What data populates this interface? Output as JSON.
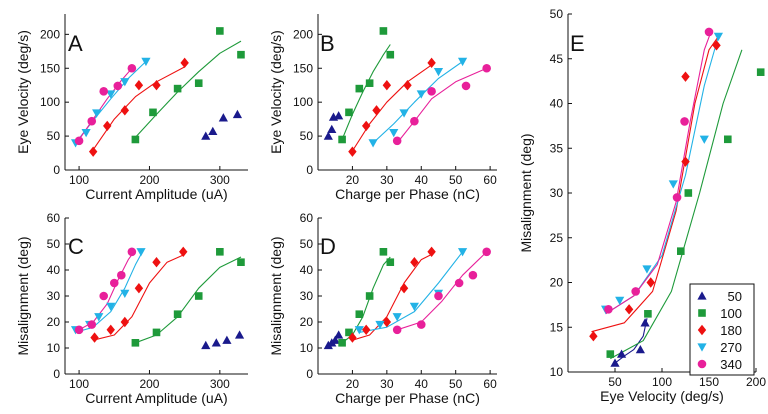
{
  "series_styles": [
    {
      "name": "50",
      "color": "#1a1a8c",
      "marker": "triangle-up"
    },
    {
      "name": "100",
      "color": "#1e9a3a",
      "marker": "square"
    },
    {
      "name": "180",
      "color": "#ee1111",
      "marker": "diamond"
    },
    {
      "name": "270",
      "color": "#22b2e6",
      "marker": "triangle-down"
    },
    {
      "name": "340",
      "color": "#e8209a",
      "marker": "circle"
    }
  ],
  "legend": {
    "position": "bottom-right",
    "panel": "E"
  },
  "chart_data": [
    {
      "panel": "A",
      "type": "scatter",
      "xlabel": "Current Amplitude (uA)",
      "ylabel": "Eye Velocity (deg/s)",
      "xlim": [
        80,
        340
      ],
      "ylim": [
        0,
        230
      ],
      "xticks": [
        100,
        200,
        300
      ],
      "yticks": [
        0,
        50,
        100,
        150,
        200
      ],
      "series": [
        {
          "name": "50",
          "x": [
            280,
            290,
            305,
            325
          ],
          "y": [
            50,
            57,
            77,
            82
          ],
          "fit": {
            "x": [],
            "y": []
          }
        },
        {
          "name": "100",
          "x": [
            180,
            205,
            240,
            270,
            300,
            330
          ],
          "y": [
            45,
            85,
            120,
            128,
            205,
            170
          ],
          "fit": {
            "x": [
              180,
              210,
              240,
              270,
              300,
              330
            ],
            "y": [
              48,
              82,
              115,
              145,
              172,
              190
            ]
          }
        },
        {
          "name": "180",
          "x": [
            120,
            140,
            165,
            185,
            210,
            250
          ],
          "y": [
            27,
            65,
            88,
            125,
            125,
            158
          ],
          "fit": {
            "x": [
              120,
              150,
              180,
              210,
              250
            ],
            "y": [
              30,
              75,
              108,
              130,
              152
            ]
          }
        },
        {
          "name": "270",
          "x": [
            95,
            110,
            125,
            145,
            165,
            195
          ],
          "y": [
            40,
            55,
            84,
            112,
            130,
            160
          ],
          "fit": {
            "x": [
              95,
              120,
              145,
              170,
              195
            ],
            "y": [
              40,
              73,
              105,
              135,
              160
            ]
          }
        },
        {
          "name": "340",
          "x": [
            100,
            118,
            135,
            155,
            175
          ],
          "y": [
            43,
            72,
            116,
            124,
            150
          ],
          "fit": {
            "x": [
              100,
              120,
              140,
              160,
              175
            ],
            "y": [
              45,
              75,
              105,
              132,
              150
            ]
          }
        }
      ]
    },
    {
      "panel": "B",
      "type": "scatter",
      "xlabel": "Charge per Phase (nC)",
      "ylabel": "Eye Velocity (deg/s)",
      "xlim": [
        10,
        62
      ],
      "ylim": [
        0,
        230
      ],
      "xticks": [
        20,
        30,
        40,
        50,
        60
      ],
      "yticks": [
        0,
        50,
        100,
        150,
        200
      ],
      "series": [
        {
          "name": "50",
          "x": [
            13,
            14,
            14.5,
            16
          ],
          "y": [
            50,
            60,
            78,
            80
          ],
          "fit": {
            "x": [],
            "y": []
          }
        },
        {
          "name": "100",
          "x": [
            17,
            19,
            22,
            25,
            29,
            31
          ],
          "y": [
            45,
            85,
            120,
            128,
            205,
            170
          ],
          "fit": {
            "x": [
              17,
              20,
              23,
              26,
              29,
              31
            ],
            "y": [
              45,
              82,
              115,
              145,
              170,
              185
            ]
          }
        },
        {
          "name": "180",
          "x": [
            20,
            24,
            27,
            30,
            36,
            43
          ],
          "y": [
            27,
            65,
            88,
            125,
            125,
            158
          ],
          "fit": {
            "x": [
              20,
              25,
              30,
              36,
              43
            ],
            "y": [
              28,
              68,
              100,
              130,
              155
            ]
          }
        },
        {
          "name": "270",
          "x": [
            26,
            32,
            35,
            40,
            45,
            52
          ],
          "y": [
            40,
            55,
            84,
            112,
            145,
            160
          ],
          "fit": {
            "x": [
              26,
              32,
              38,
              45,
              52
            ],
            "y": [
              40,
              68,
              100,
              135,
              160
            ]
          }
        },
        {
          "name": "340",
          "x": [
            33,
            38,
            43,
            53,
            59
          ],
          "y": [
            43,
            72,
            116,
            124,
            150
          ],
          "fit": {
            "x": [
              33,
              38,
              43,
              50,
              59
            ],
            "y": [
              40,
              72,
              105,
              130,
              150
            ]
          }
        }
      ]
    },
    {
      "panel": "C",
      "type": "scatter",
      "xlabel": "Current Amplitude (uA)",
      "ylabel": "Misalignment (deg)",
      "xlim": [
        80,
        340
      ],
      "ylim": [
        0,
        60
      ],
      "xticks": [
        100,
        200,
        300
      ],
      "yticks": [
        0,
        10,
        20,
        30,
        40,
        50,
        60
      ],
      "series": [
        {
          "name": "50",
          "x": [
            280,
            295,
            310,
            328
          ],
          "y": [
            11,
            12,
            13,
            15
          ],
          "fit": {
            "x": [],
            "y": []
          }
        },
        {
          "name": "100",
          "x": [
            180,
            210,
            240,
            270,
            300,
            330
          ],
          "y": [
            12,
            16,
            23,
            30,
            47,
            43
          ],
          "fit": {
            "x": [
              180,
              210,
              240,
              270,
              300,
              330
            ],
            "y": [
              12,
              15,
              22,
              33,
              41,
              45
            ]
          }
        },
        {
          "name": "180",
          "x": [
            122,
            145,
            165,
            185,
            210,
            248
          ],
          "y": [
            14,
            17,
            20,
            33,
            43,
            47
          ],
          "fit": {
            "x": [
              120,
              150,
              175,
              200,
              225,
              250
            ],
            "y": [
              13,
              15,
              22,
              35,
              43,
              46
            ]
          }
        },
        {
          "name": "270",
          "x": [
            95,
            115,
            128,
            145,
            165,
            188
          ],
          "y": [
            17,
            19,
            22,
            26,
            31,
            47
          ],
          "fit": {
            "x": [
              95,
              120,
              145,
              165,
              180,
              190
            ],
            "y": [
              16,
              18,
              24,
              33,
              42,
              47
            ]
          }
        },
        {
          "name": "340",
          "x": [
            100,
            118,
            135,
            150,
            160,
            175
          ],
          "y": [
            17,
            19,
            30,
            35,
            38,
            47
          ],
          "fit": {
            "x": [
              100,
              120,
              140,
              155,
              170,
              178
            ],
            "y": [
              17,
              20,
              27,
              36,
              44,
              47
            ]
          }
        }
      ]
    },
    {
      "panel": "D",
      "type": "scatter",
      "xlabel": "Charge per Phase (nC)",
      "ylabel": "Misalignment (deg)",
      "xlim": [
        10,
        62
      ],
      "ylim": [
        0,
        60
      ],
      "xticks": [
        20,
        30,
        40,
        50,
        60
      ],
      "yticks": [
        0,
        10,
        20,
        30,
        40,
        50,
        60
      ],
      "series": [
        {
          "name": "50",
          "x": [
            13,
            14,
            15,
            16
          ],
          "y": [
            11,
            12,
            13,
            15
          ],
          "fit": {
            "x": [],
            "y": []
          }
        },
        {
          "name": "100",
          "x": [
            17,
            19,
            22,
            25,
            29,
            31
          ],
          "y": [
            12,
            16,
            23,
            30,
            47,
            43
          ],
          "fit": {
            "x": [
              17,
              20,
              23,
              26,
              29,
              31
            ],
            "y": [
              12,
              15,
              22,
              33,
              42,
              45
            ]
          }
        },
        {
          "name": "180",
          "x": [
            20,
            24,
            30,
            35,
            38,
            43
          ],
          "y": [
            14,
            17,
            20,
            33,
            43,
            47
          ],
          "fit": {
            "x": [
              20,
              25,
              30,
              35,
              40,
              43
            ],
            "y": [
              13,
              15,
              22,
              35,
              44,
              46
            ]
          }
        },
        {
          "name": "270",
          "x": [
            22,
            28,
            33,
            38,
            45,
            52
          ],
          "y": [
            17,
            19,
            22,
            26,
            31,
            47
          ],
          "fit": {
            "x": [
              22,
              30,
              38,
              45,
              52
            ],
            "y": [
              16,
              18,
              24,
              35,
              47
            ]
          }
        },
        {
          "name": "340",
          "x": [
            33,
            40,
            45,
            51,
            55,
            59
          ],
          "y": [
            17,
            19,
            30,
            35,
            38,
            47
          ],
          "fit": {
            "x": [
              33,
              40,
              46,
              52,
              59
            ],
            "y": [
              17,
              20,
              28,
              38,
              47
            ]
          }
        }
      ]
    },
    {
      "panel": "E",
      "type": "scatter",
      "xlabel": "Eye Velocity (deg/s)",
      "ylabel": "Misalignment (deg)",
      "xlim": [
        0,
        200
      ],
      "ylim": [
        10,
        50
      ],
      "xticks": [
        50,
        100,
        150,
        200
      ],
      "yticks": [
        10,
        15,
        20,
        25,
        30,
        35,
        40,
        45,
        50
      ],
      "series": [
        {
          "name": "50",
          "x": [
            50,
            57,
            77,
            82
          ],
          "y": [
            11,
            12,
            12.5,
            15.5
          ],
          "fit": {
            "x": [
              50,
              60,
              70,
              80,
              84
            ],
            "y": [
              11,
              11.8,
              12.5,
              14,
              16
            ]
          }
        },
        {
          "name": "100",
          "x": [
            45,
            85,
            120,
            128,
            170,
            205
          ],
          "y": [
            12,
            16.5,
            23.5,
            30,
            36,
            43.5
          ],
          "fit": {
            "x": [
              45,
              80,
              110,
              140,
              165,
              185
            ],
            "y": [
              11.5,
              13.5,
              19,
              30,
              40,
              46
            ]
          }
        },
        {
          "name": "180",
          "x": [
            27,
            65,
            88,
            125,
            125,
            158
          ],
          "y": [
            14,
            17,
            20,
            33.5,
            43,
            46.5
          ],
          "fit": {
            "x": [
              25,
              60,
              90,
              115,
              135,
              150,
              160
            ],
            "y": [
              14.5,
              15.5,
              19,
              28,
              40,
              46,
              47.5
            ]
          }
        },
        {
          "name": "270",
          "x": [
            40,
            55,
            84,
            112,
            145,
            160
          ],
          "y": [
            17,
            18,
            21.5,
            31,
            36,
            47.5
          ],
          "fit": {
            "x": [
              40,
              70,
              100,
              125,
              145,
              160
            ],
            "y": [
              16.5,
              18.5,
              23,
              32,
              42,
              47.5
            ]
          }
        },
        {
          "name": "340",
          "x": [
            43,
            72,
            116,
            124,
            150
          ],
          "y": [
            17,
            19,
            29.5,
            38,
            48
          ],
          "fit": {
            "x": [
              40,
              70,
              95,
              115,
              130,
              145,
              152
            ],
            "y": [
              16.5,
              18.5,
              22,
              29,
              38,
              46,
              48
            ]
          }
        }
      ]
    }
  ]
}
